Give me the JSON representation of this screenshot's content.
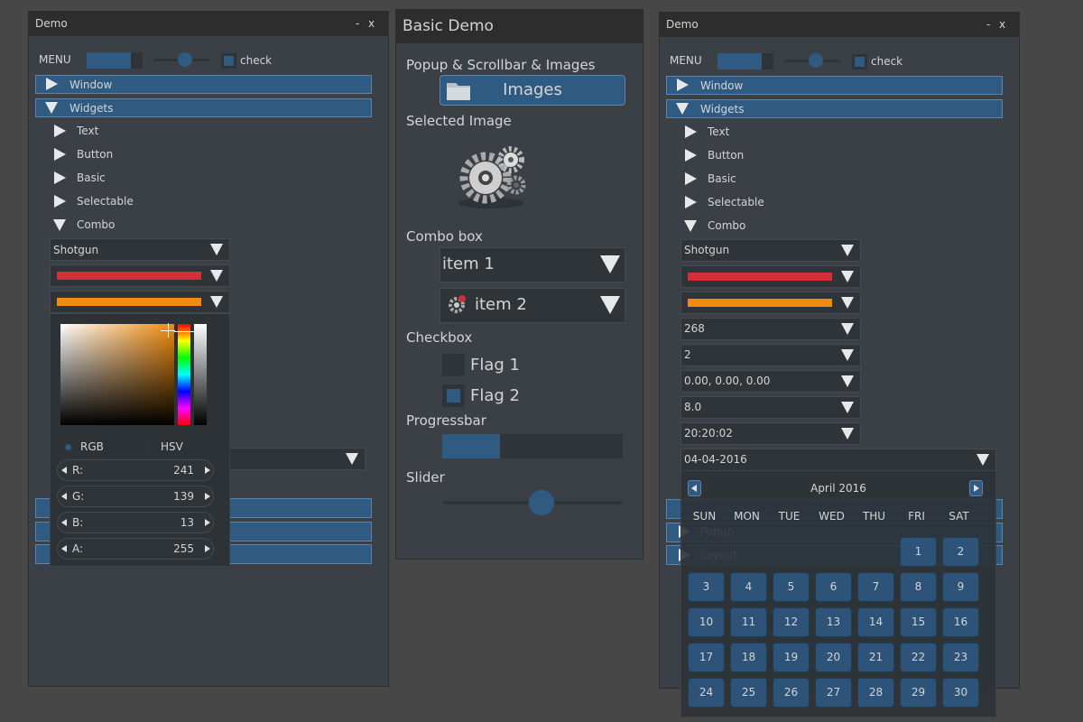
{
  "left_window": {
    "title": "Demo",
    "minimize": "-",
    "close": "x",
    "menu": "MENU",
    "check": "check",
    "tree": [
      "Window",
      "Widgets"
    ],
    "widgets": [
      "Text",
      "Button",
      "Basic",
      "Selectable",
      "Combo"
    ],
    "combo": "Shotgun",
    "color_bars": [
      "#d3313a",
      "#f18b0d"
    ],
    "color_picker": {
      "modes": [
        "RGB",
        "HSV"
      ],
      "channels": [
        {
          "label": "R:",
          "value": 241
        },
        {
          "label": "G:",
          "value": 139
        },
        {
          "label": "B:",
          "value": 13
        },
        {
          "label": "A:",
          "value": 255
        }
      ]
    }
  },
  "middle_window": {
    "title": "Basic Demo",
    "popup_label": "Popup & Scrollbar & Images",
    "images_button": "Images",
    "selected_image_label": "Selected Image",
    "combo_label": "Combo box",
    "combo_items": [
      "item 1",
      "item 2"
    ],
    "checkbox_label": "Checkbox",
    "flags": [
      "Flag 1",
      "Flag 2"
    ],
    "progress_label": "Progressbar",
    "progress": {
      "value": 32,
      "max": 100
    },
    "slider_label": "Slider",
    "slider": {
      "value": 55,
      "max": 100
    }
  },
  "right_window": {
    "title": "Demo",
    "minimize": "-",
    "close": "x",
    "menu": "MENU",
    "check": "check",
    "tree": [
      "Window",
      "Widgets"
    ],
    "widgets": [
      "Text",
      "Button",
      "Basic",
      "Selectable",
      "Combo"
    ],
    "combos": [
      "Shotgun",
      268,
      2,
      "0.00, 0.00, 0.00",
      "8.0",
      "20:20:02"
    ],
    "color_bars": [
      "#d3313a",
      "#f18b0d"
    ],
    "date": "04-04-2016",
    "behind": [
      "Popup",
      "Layout"
    ],
    "calendar": {
      "month": "April 2016",
      "weekdays": [
        "SUN",
        "MON",
        "TUE",
        "WED",
        "THU",
        "FRI",
        "SAT"
      ],
      "weeks": [
        [
          null,
          null,
          null,
          null,
          null,
          1,
          2
        ],
        [
          3,
          4,
          5,
          6,
          7,
          8,
          9
        ],
        [
          10,
          11,
          12,
          13,
          14,
          15,
          16
        ],
        [
          17,
          18,
          19,
          20,
          21,
          22,
          23
        ],
        [
          24,
          25,
          26,
          27,
          28,
          29,
          30
        ]
      ]
    }
  }
}
